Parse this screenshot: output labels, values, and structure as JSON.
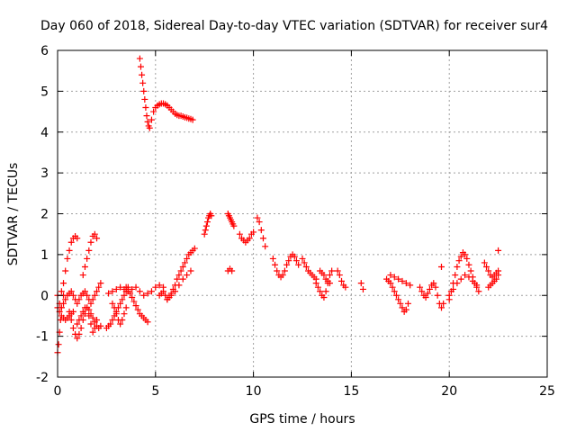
{
  "chart_data": {
    "type": "scatter",
    "title": "Day 060 of 2018, Sidereal Day-to-day VTEC variation (SDTVAR) for receiver sur4",
    "xlabel": "GPS time / hours",
    "ylabel": "SDTVAR / TECUs",
    "xlim": [
      0,
      25
    ],
    "ylim": [
      -2,
      6
    ],
    "xticks": [
      "0",
      "5",
      "10",
      "15",
      "20",
      "25"
    ],
    "yticks": [
      "-2",
      "-1",
      "0",
      "1",
      "2",
      "3",
      "4",
      "5",
      "6"
    ],
    "grid": true,
    "marker": "+",
    "color": "#ff0000",
    "segments": [
      {
        "x": [
          0.0,
          0.05,
          0.1,
          0.15,
          0.2,
          0.3
        ],
        "y": [
          -1.4,
          -1.2,
          -0.9,
          -0.6,
          -0.3,
          0.0
        ]
      },
      {
        "x": [
          0.0,
          0.1,
          0.2,
          0.3,
          0.4,
          0.5,
          0.6,
          0.7,
          0.8,
          0.9,
          1.0,
          1.1,
          1.2,
          1.3,
          1.4,
          1.5,
          1.6,
          1.7,
          1.8,
          1.9,
          2.0,
          2.1,
          2.2
        ],
        "y": [
          0.0,
          -0.2,
          -0.3,
          -0.2,
          -0.1,
          0.0,
          0.05,
          0.1,
          0.0,
          -0.1,
          -0.2,
          -0.1,
          0.0,
          0.05,
          0.1,
          0.0,
          -0.1,
          -0.2,
          -0.1,
          0.0,
          0.1,
          0.2,
          0.3
        ]
      },
      {
        "x": [
          0.0,
          0.1,
          0.2,
          0.3,
          0.4,
          0.5,
          0.6,
          0.7,
          0.8
        ],
        "y": [
          -0.3,
          -0.4,
          -0.5,
          -0.55,
          -0.6,
          -0.55,
          -0.5,
          -0.45,
          -0.4
        ]
      },
      {
        "x": [
          0.2,
          0.3,
          0.4,
          0.5,
          0.6,
          0.7,
          0.8,
          0.9,
          1.0
        ],
        "y": [
          0.1,
          0.3,
          0.6,
          0.9,
          1.1,
          1.3,
          1.4,
          1.45,
          1.4
        ]
      },
      {
        "x": [
          0.6,
          0.7,
          0.8,
          0.9,
          1.0,
          1.1,
          1.2,
          1.3,
          1.4,
          1.5,
          1.6,
          1.7,
          1.8,
          1.9,
          2.0
        ],
        "y": [
          -0.4,
          -0.6,
          -0.8,
          -0.95,
          -1.05,
          -0.95,
          -0.8,
          -0.6,
          -0.45,
          -0.3,
          -0.5,
          -0.7,
          -0.9,
          -0.8,
          -0.6
        ]
      },
      {
        "x": [
          1.3,
          1.4,
          1.5,
          1.6,
          1.7,
          1.8,
          1.9,
          2.0
        ],
        "y": [
          0.5,
          0.7,
          0.9,
          1.1,
          1.3,
          1.45,
          1.5,
          1.4
        ]
      },
      {
        "x": [
          1.0,
          1.1,
          1.2,
          1.3,
          1.4,
          1.5,
          1.6,
          1.7,
          1.8,
          1.9,
          2.0,
          2.1,
          2.2
        ],
        "y": [
          -0.7,
          -0.6,
          -0.5,
          -0.4,
          -0.3,
          -0.3,
          -0.35,
          -0.45,
          -0.55,
          -0.65,
          -0.75,
          -0.8,
          -0.75
        ]
      },
      {
        "x": [
          2.5,
          2.6,
          2.7,
          2.8,
          2.9,
          3.0,
          3.1,
          3.2,
          3.3,
          3.4,
          3.5,
          3.6
        ],
        "y": [
          -0.8,
          -0.75,
          -0.7,
          -0.6,
          -0.5,
          -0.4,
          -0.3,
          -0.2,
          -0.1,
          0.0,
          0.1,
          0.2
        ]
      },
      {
        "x": [
          2.6,
          2.8,
          3.0,
          3.2,
          3.4,
          3.6,
          3.8,
          4.0,
          4.2,
          4.4,
          4.6,
          4.8,
          5.0,
          5.2,
          5.4
        ],
        "y": [
          0.05,
          0.1,
          0.15,
          0.2,
          0.15,
          0.1,
          0.15,
          0.2,
          0.1,
          0.0,
          0.05,
          0.1,
          0.2,
          0.25,
          0.2
        ]
      },
      {
        "x": [
          2.8,
          2.9,
          3.0,
          3.1,
          3.2,
          3.3,
          3.4,
          3.5
        ],
        "y": [
          -0.2,
          -0.3,
          -0.45,
          -0.6,
          -0.7,
          -0.6,
          -0.45,
          -0.3
        ]
      },
      {
        "x": [
          3.5,
          3.6,
          3.7,
          3.8,
          3.9,
          4.0,
          4.1,
          4.2,
          4.3,
          4.4,
          4.5,
          4.6
        ],
        "y": [
          0.2,
          0.15,
          0.05,
          -0.05,
          -0.15,
          -0.25,
          -0.35,
          -0.45,
          -0.5,
          -0.55,
          -0.6,
          -0.65
        ]
      },
      {
        "x": [
          4.2,
          4.25,
          4.3,
          4.35,
          4.4,
          4.45,
          4.5,
          4.55,
          4.6,
          4.65,
          4.7,
          4.8,
          4.9,
          5.0,
          5.1,
          5.2,
          5.3,
          5.4,
          5.5,
          5.6,
          5.7,
          5.8,
          5.9,
          6.0,
          6.1,
          6.2,
          6.3,
          6.4,
          6.5,
          6.6,
          6.7,
          6.8,
          6.9
        ],
        "y": [
          5.8,
          5.6,
          5.4,
          5.2,
          5.0,
          4.8,
          4.6,
          4.4,
          4.25,
          4.15,
          4.1,
          4.3,
          4.5,
          4.6,
          4.65,
          4.68,
          4.7,
          4.7,
          4.68,
          4.65,
          4.6,
          4.55,
          4.5,
          4.45,
          4.42,
          4.4,
          4.4,
          4.38,
          4.36,
          4.35,
          4.33,
          4.32,
          4.3
        ]
      },
      {
        "x": [
          5.2,
          5.3,
          5.4,
          5.5,
          5.6,
          5.7,
          5.8,
          5.9,
          6.0,
          6.1,
          6.2,
          6.3,
          6.4,
          6.5,
          6.6,
          6.7,
          6.8,
          6.9,
          7.0
        ],
        "y": [
          0.0,
          0.05,
          0.1,
          0.0,
          -0.1,
          -0.05,
          0.05,
          0.15,
          0.25,
          0.4,
          0.5,
          0.6,
          0.7,
          0.8,
          0.9,
          1.0,
          1.05,
          1.1,
          1.15
        ]
      },
      {
        "x": [
          5.6,
          5.8,
          6.0,
          6.2,
          6.4,
          6.6,
          6.8
        ],
        "y": [
          -0.1,
          0.0,
          0.1,
          0.25,
          0.4,
          0.5,
          0.6
        ]
      },
      {
        "x": [
          7.5,
          7.55,
          7.6,
          7.65,
          7.7,
          7.75,
          7.8,
          7.85
        ],
        "y": [
          1.5,
          1.6,
          1.7,
          1.8,
          1.9,
          1.95,
          2.0,
          1.95
        ]
      },
      {
        "x": [
          8.7,
          8.75,
          8.8,
          8.85,
          8.9,
          8.95,
          9.0
        ],
        "y": [
          2.0,
          1.95,
          1.9,
          1.85,
          1.8,
          1.75,
          1.7
        ]
      },
      {
        "x": [
          8.7,
          8.8,
          8.9
        ],
        "y": [
          0.6,
          0.65,
          0.6
        ]
      },
      {
        "x": [
          9.3,
          9.4,
          9.5,
          9.6,
          9.7,
          9.8,
          9.9,
          10.0
        ],
        "y": [
          1.5,
          1.4,
          1.35,
          1.3,
          1.35,
          1.4,
          1.5,
          1.55
        ]
      },
      {
        "x": [
          10.2,
          10.3,
          10.4,
          10.5,
          10.6
        ],
        "y": [
          1.9,
          1.8,
          1.6,
          1.4,
          1.2
        ]
      },
      {
        "x": [
          11.0,
          11.1,
          11.2,
          11.3,
          11.4,
          11.5,
          11.6,
          11.7,
          11.8,
          11.9,
          12.0,
          12.1,
          12.2,
          12.3
        ],
        "y": [
          0.9,
          0.75,
          0.6,
          0.5,
          0.45,
          0.5,
          0.6,
          0.75,
          0.85,
          0.95,
          1.0,
          0.95,
          0.85,
          0.75
        ]
      },
      {
        "x": [
          12.5,
          12.6,
          12.7,
          12.8,
          12.9,
          13.0,
          13.1,
          13.2
        ],
        "y": [
          0.9,
          0.8,
          0.7,
          0.6,
          0.55,
          0.5,
          0.45,
          0.4
        ]
      },
      {
        "x": [
          13.2,
          13.3,
          13.4,
          13.5,
          13.6,
          13.7,
          13.8,
          13.9,
          14.0
        ],
        "y": [
          0.3,
          0.2,
          0.1,
          0.0,
          -0.05,
          0.1,
          0.3,
          0.5,
          0.6
        ]
      },
      {
        "x": [
          13.4,
          13.5,
          13.6,
          13.7,
          13.8,
          13.9
        ],
        "y": [
          0.6,
          0.55,
          0.5,
          0.4,
          0.35,
          0.3
        ]
      },
      {
        "x": [
          14.3,
          14.4,
          14.5,
          14.6,
          14.7
        ],
        "y": [
          0.6,
          0.5,
          0.35,
          0.25,
          0.2
        ]
      },
      {
        "x": [
          15.5,
          15.6
        ],
        "y": [
          0.3,
          0.15
        ]
      },
      {
        "x": [
          16.8,
          16.9,
          17.0,
          17.1,
          17.2,
          17.3,
          17.4,
          17.5,
          17.6,
          17.7,
          17.8,
          17.9
        ],
        "y": [
          0.4,
          0.35,
          0.3,
          0.2,
          0.1,
          0.0,
          -0.1,
          -0.2,
          -0.3,
          -0.4,
          -0.35,
          -0.2
        ]
      },
      {
        "x": [
          17.0,
          17.2,
          17.4,
          17.6,
          17.8,
          18.0
        ],
        "y": [
          0.5,
          0.45,
          0.4,
          0.35,
          0.3,
          0.25
        ]
      },
      {
        "x": [
          18.5,
          18.6,
          18.7,
          18.8,
          18.9,
          19.0,
          19.1,
          19.2,
          19.3,
          19.4,
          19.5,
          19.6,
          19.7
        ],
        "y": [
          0.2,
          0.1,
          0.0,
          -0.05,
          0.05,
          0.15,
          0.25,
          0.3,
          0.2,
          0.0,
          -0.2,
          -0.3,
          -0.2
        ]
      },
      {
        "x": [
          19.6
        ],
        "y": [
          0.7
        ]
      },
      {
        "x": [
          20.0,
          20.1,
          20.2,
          20.3,
          20.4,
          20.5,
          20.6,
          20.7,
          20.8,
          20.9,
          21.0,
          21.1,
          21.2,
          21.3,
          21.4,
          21.5
        ],
        "y": [
          -0.1,
          0.1,
          0.3,
          0.5,
          0.7,
          0.85,
          0.95,
          1.05,
          1.0,
          0.9,
          0.75,
          0.6,
          0.45,
          0.3,
          0.2,
          0.1
        ]
      },
      {
        "x": [
          20.0,
          20.2,
          20.4,
          20.6,
          20.8,
          21.0,
          21.2,
          21.4
        ],
        "y": [
          0.0,
          0.15,
          0.3,
          0.4,
          0.5,
          0.45,
          0.35,
          0.25
        ]
      },
      {
        "x": [
          21.8,
          21.9,
          22.0,
          22.1,
          22.2,
          22.3,
          22.4,
          22.5
        ],
        "y": [
          0.8,
          0.7,
          0.6,
          0.5,
          0.45,
          0.5,
          0.55,
          0.6
        ]
      },
      {
        "x": [
          22.0,
          22.1,
          22.2,
          22.3,
          22.4,
          22.5
        ],
        "y": [
          0.2,
          0.25,
          0.3,
          0.35,
          0.4,
          0.5
        ]
      },
      {
        "x": [
          22.5
        ],
        "y": [
          1.1
        ]
      }
    ]
  }
}
